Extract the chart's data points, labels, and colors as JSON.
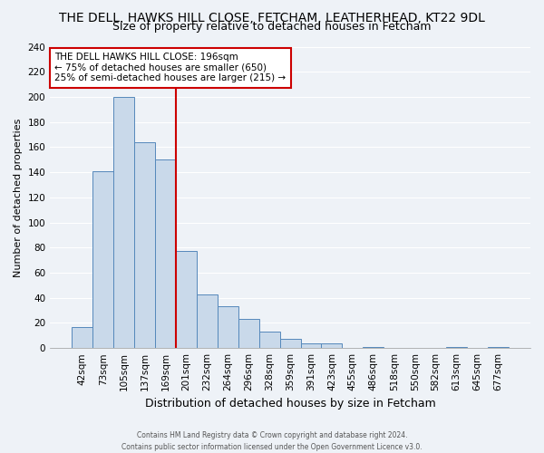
{
  "title": "THE DELL, HAWKS HILL CLOSE, FETCHAM, LEATHERHEAD, KT22 9DL",
  "subtitle": "Size of property relative to detached houses in Fetcham",
  "xlabel": "Distribution of detached houses by size in Fetcham",
  "ylabel": "Number of detached properties",
  "bar_labels": [
    "42sqm",
    "73sqm",
    "105sqm",
    "137sqm",
    "169sqm",
    "201sqm",
    "232sqm",
    "264sqm",
    "296sqm",
    "328sqm",
    "359sqm",
    "391sqm",
    "423sqm",
    "455sqm",
    "486sqm",
    "518sqm",
    "550sqm",
    "582sqm",
    "613sqm",
    "645sqm",
    "677sqm"
  ],
  "bar_values": [
    17,
    141,
    200,
    164,
    150,
    77,
    43,
    33,
    23,
    13,
    7,
    4,
    4,
    0,
    1,
    0,
    0,
    0,
    1,
    0,
    1
  ],
  "bar_color": "#c9d9ea",
  "bar_edge_color": "#5588bb",
  "vline_x_index": 5,
  "vline_color": "#cc0000",
  "annotation_title": "THE DELL HAWKS HILL CLOSE: 196sqm",
  "annotation_line1": "← 75% of detached houses are smaller (650)",
  "annotation_line2": "25% of semi-detached houses are larger (215) →",
  "annotation_box_edgecolor": "#cc0000",
  "ylim": [
    0,
    240
  ],
  "yticks": [
    0,
    20,
    40,
    60,
    80,
    100,
    120,
    140,
    160,
    180,
    200,
    220,
    240
  ],
  "footer1": "Contains HM Land Registry data © Crown copyright and database right 2024.",
  "footer2": "Contains public sector information licensed under the Open Government Licence v3.0.",
  "bg_color": "#eef2f7",
  "grid_color": "#ffffff",
  "title_fontsize": 10,
  "subtitle_fontsize": 9,
  "ylabel_fontsize": 8,
  "xlabel_fontsize": 9,
  "tick_fontsize": 7.5,
  "annot_fontsize": 7.5
}
